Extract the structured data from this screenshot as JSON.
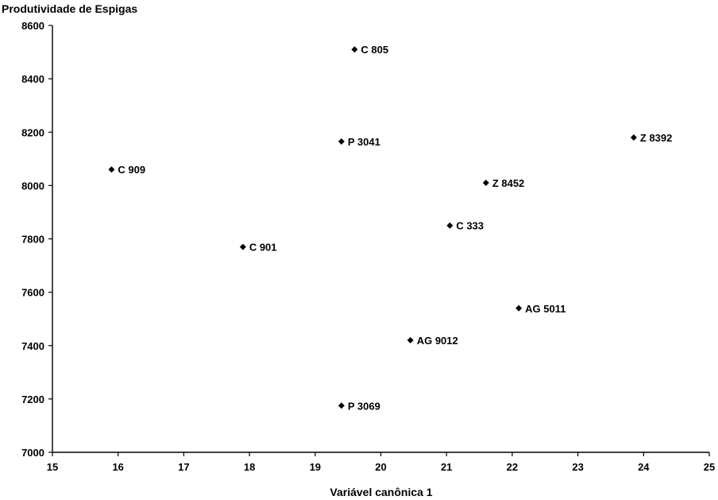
{
  "chart_data": {
    "type": "scatter",
    "title": "",
    "ylabel": "Produtividade de Espigas",
    "xlabel": "Variável canônica 1",
    "xlim": [
      15,
      25
    ],
    "ylim": [
      7000,
      8600
    ],
    "x_ticks": [
      "15",
      "16",
      "17",
      "18",
      "19",
      "20",
      "21",
      "22",
      "23",
      "24",
      "25"
    ],
    "y_ticks": [
      "7000",
      "7200",
      "7400",
      "7600",
      "7800",
      "8000",
      "8200",
      "8400",
      "8600"
    ],
    "grid": false,
    "legend": "none",
    "marker": "diamond",
    "points": [
      {
        "label": "C 805",
        "x": 19.6,
        "y": 8510
      },
      {
        "label": "P 3041",
        "x": 19.4,
        "y": 8165
      },
      {
        "label": "Z 8392",
        "x": 23.85,
        "y": 8180
      },
      {
        "label": "C 909",
        "x": 15.9,
        "y": 8060
      },
      {
        "label": "Z 8452",
        "x": 21.6,
        "y": 8010
      },
      {
        "label": "C 333",
        "x": 21.05,
        "y": 7850
      },
      {
        "label": "C 901",
        "x": 17.9,
        "y": 7770
      },
      {
        "label": "AG 5011",
        "x": 22.1,
        "y": 7540
      },
      {
        "label": "AG 9012",
        "x": 20.45,
        "y": 7420
      },
      {
        "label": "P 3069",
        "x": 19.4,
        "y": 7175
      }
    ]
  }
}
